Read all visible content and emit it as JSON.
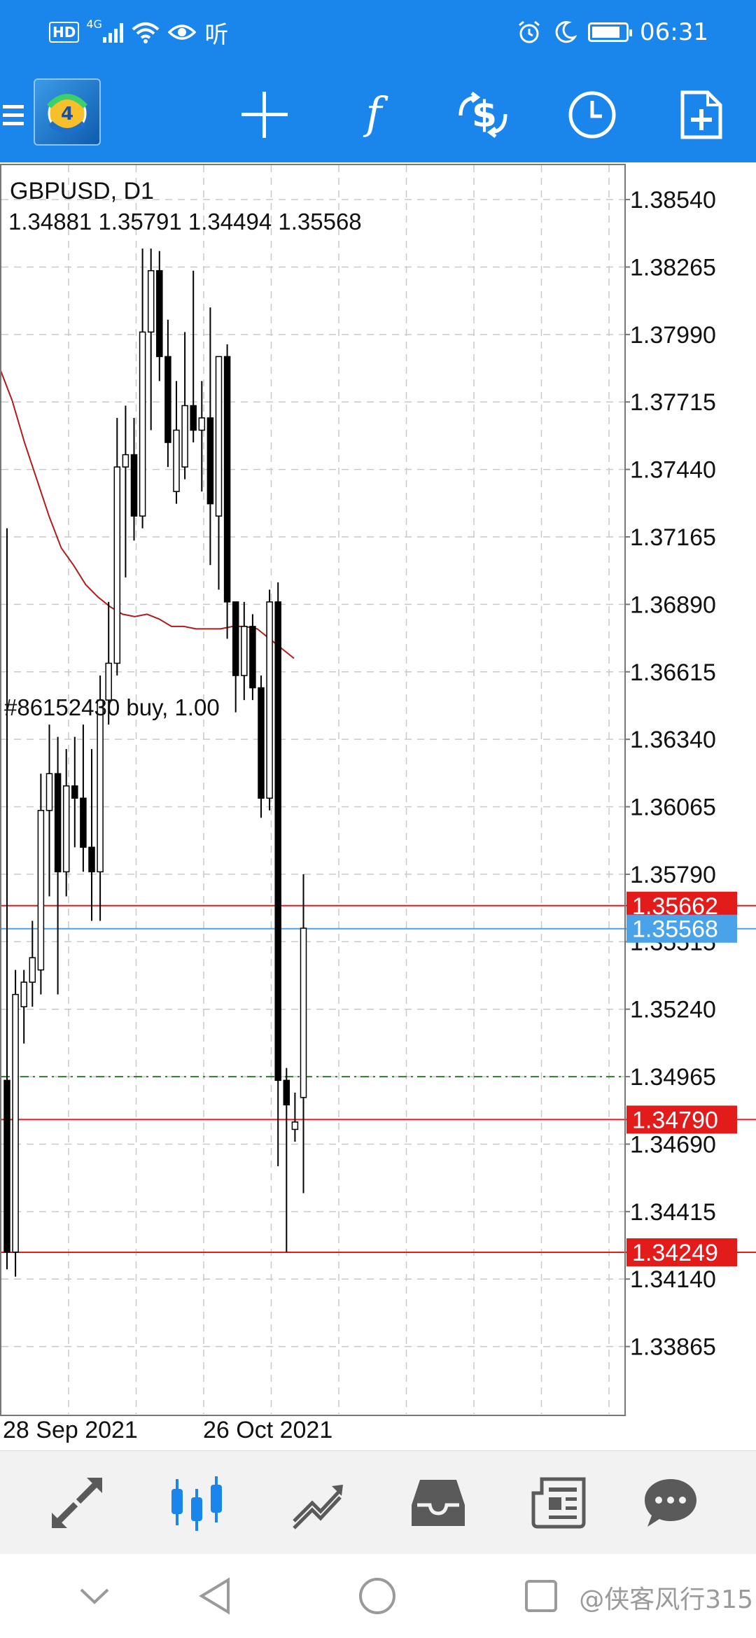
{
  "status_bar": {
    "network_badge": "HD",
    "network_type": "4G",
    "app_notice": "听",
    "time": "06:31",
    "battery_level": 0.85
  },
  "toolbar": {
    "icons": [
      "menu-icon",
      "metatrader-logo",
      "crosshair-icon",
      "indicators-icon",
      "trade-icon",
      "timeframe-icon",
      "new-order-icon"
    ]
  },
  "chart_data": {
    "type": "candlestick",
    "symbol_label": "GBPUSD, D1",
    "ohlc_label": "1.34881 1.35791 1.34494 1.35568",
    "x_labels": [
      "28 Sep 2021",
      "26 Oct 2021"
    ],
    "y_ticks": [
      "1.38540",
      "1.38265",
      "1.37990",
      "1.37715",
      "1.37440",
      "1.37165",
      "1.36890",
      "1.36615",
      "1.36340",
      "1.36065",
      "1.35790",
      "1.35515",
      "1.35240",
      "1.34965",
      "1.34690",
      "1.34415",
      "1.34140",
      "1.33865"
    ],
    "ylim": [
      1.3359,
      1.3868
    ],
    "price_lines": [
      {
        "label": "1.35662",
        "value": 1.35662,
        "color": "#e21b1b"
      },
      {
        "label": "1.35568",
        "value": 1.35568,
        "color": "#4aa3e8"
      },
      {
        "label": "1.34790",
        "value": 1.3479,
        "color": "#e21b1b"
      },
      {
        "label": "1.34249",
        "value": 1.34249,
        "color": "#e21b1b"
      }
    ],
    "order_line": {
      "label": "#86152430 buy, 1.00",
      "value": 1.34965,
      "color": "#2d7d2d"
    },
    "moving_average": {
      "color": "#b01c1c",
      "values": [
        1.3785,
        1.3772,
        1.3755,
        1.374,
        1.3725,
        1.3712,
        1.3705,
        1.3697,
        1.3692,
        1.3688,
        1.3685,
        1.3684,
        1.3685,
        1.3683,
        1.368,
        1.368,
        1.3679,
        1.3679,
        1.3679,
        1.368,
        1.368,
        1.3679,
        1.3675,
        1.3671,
        1.3667
      ]
    },
    "candles": [
      {
        "o": 1.3495,
        "h": 1.372,
        "l": 1.3418,
        "c": 1.3425
      },
      {
        "o": 1.3425,
        "h": 1.354,
        "l": 1.3415,
        "c": 1.353
      },
      {
        "o": 1.3525,
        "h": 1.354,
        "l": 1.351,
        "c": 1.3535
      },
      {
        "o": 1.3535,
        "h": 1.356,
        "l": 1.3525,
        "c": 1.3545
      },
      {
        "o": 1.354,
        "h": 1.362,
        "l": 1.353,
        "c": 1.3605
      },
      {
        "o": 1.3605,
        "h": 1.364,
        "l": 1.357,
        "c": 1.362
      },
      {
        "o": 1.362,
        "h": 1.3635,
        "l": 1.353,
        "c": 1.358
      },
      {
        "o": 1.358,
        "h": 1.363,
        "l": 1.357,
        "c": 1.3615
      },
      {
        "o": 1.3615,
        "h": 1.3635,
        "l": 1.359,
        "c": 1.361
      },
      {
        "o": 1.361,
        "h": 1.364,
        "l": 1.358,
        "c": 1.359
      },
      {
        "o": 1.359,
        "h": 1.363,
        "l": 1.356,
        "c": 1.358
      },
      {
        "o": 1.358,
        "h": 1.366,
        "l": 1.356,
        "c": 1.365
      },
      {
        "o": 1.365,
        "h": 1.369,
        "l": 1.364,
        "c": 1.3665
      },
      {
        "o": 1.3665,
        "h": 1.3765,
        "l": 1.366,
        "c": 1.3745
      },
      {
        "o": 1.3745,
        "h": 1.377,
        "l": 1.37,
        "c": 1.375
      },
      {
        "o": 1.375,
        "h": 1.3765,
        "l": 1.3715,
        "c": 1.3725
      },
      {
        "o": 1.3725,
        "h": 1.3834,
        "l": 1.372,
        "c": 1.38
      },
      {
        "o": 1.38,
        "h": 1.3834,
        "l": 1.376,
        "c": 1.3825
      },
      {
        "o": 1.3825,
        "h": 1.3833,
        "l": 1.378,
        "c": 1.379
      },
      {
        "o": 1.379,
        "h": 1.3805,
        "l": 1.3745,
        "c": 1.3755
      },
      {
        "o": 1.3735,
        "h": 1.378,
        "l": 1.373,
        "c": 1.376
      },
      {
        "o": 1.3745,
        "h": 1.38,
        "l": 1.374,
        "c": 1.377
      },
      {
        "o": 1.377,
        "h": 1.3825,
        "l": 1.3755,
        "c": 1.376
      },
      {
        "o": 1.376,
        "h": 1.378,
        "l": 1.3735,
        "c": 1.3765
      },
      {
        "o": 1.3765,
        "h": 1.381,
        "l": 1.3705,
        "c": 1.373
      },
      {
        "o": 1.3725,
        "h": 1.379,
        "l": 1.3695,
        "c": 1.379
      },
      {
        "o": 1.379,
        "h": 1.3795,
        "l": 1.3675,
        "c": 1.369
      },
      {
        "o": 1.369,
        "h": 1.369,
        "l": 1.3645,
        "c": 1.366
      },
      {
        "o": 1.366,
        "h": 1.369,
        "l": 1.365,
        "c": 1.368
      },
      {
        "o": 1.368,
        "h": 1.3685,
        "l": 1.365,
        "c": 1.3655
      },
      {
        "o": 1.3655,
        "h": 1.366,
        "l": 1.3602,
        "c": 1.361
      },
      {
        "o": 1.361,
        "h": 1.3695,
        "l": 1.3605,
        "c": 1.369
      },
      {
        "o": 1.369,
        "h": 1.3698,
        "l": 1.346,
        "c": 1.3495
      },
      {
        "o": 1.3495,
        "h": 1.35,
        "l": 1.3425,
        "c": 1.3485
      },
      {
        "o": 1.3475,
        "h": 1.349,
        "l": 1.347,
        "c": 1.3478
      },
      {
        "o": 1.3488,
        "h": 1.3579,
        "l": 1.3449,
        "c": 1.3557
      }
    ]
  },
  "bottom_nav": {
    "items": [
      "quotes-icon",
      "chart-icon",
      "trade-icon",
      "history-icon",
      "news-icon",
      "chat-icon"
    ]
  },
  "system_nav": {
    "watermark": "@侠客风行315"
  }
}
